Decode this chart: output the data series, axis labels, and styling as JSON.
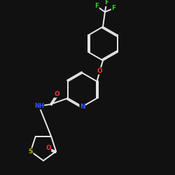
{
  "background": "#111111",
  "bond_color": "#e8e8e8",
  "atom_colors": {
    "O": "#ff3333",
    "N": "#3355ff",
    "S": "#bbbb00",
    "F": "#33cc33",
    "C": "#e8e8e8"
  },
  "lw": 1.4,
  "fontsize": 6.5
}
